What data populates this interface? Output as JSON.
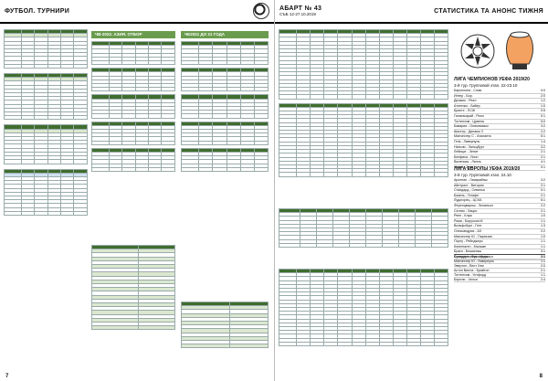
{
  "left": {
    "section": "ФУТБОЛ. ТУРНИРИ",
    "page_number": "7",
    "col2_title": "ЧВ-2022. АЗИЯ. ОТБОР",
    "col3_title": "ЧЕ2021 ДО 21 ГОДА"
  },
  "right": {
    "masthead": "АБАРТ № 43",
    "masthead_sub": "СЪБ 12-27.10.2019",
    "section": "СТАТИСТИКА ТА АНОНС ТИЖНЯ",
    "page_number": "8",
    "cl_title": "ЛИГА ЧЕМПИОНОВ УЕФА 2019/20",
    "cl_sub": "3-й тур. Групповой этап. 22-23.10",
    "cl_matches": [
      [
        "Барселона - Слав.",
        "0:0"
      ],
      [
        "Интер - Бор.",
        "2:0"
      ],
      [
        "Динамо - Реал",
        "1:2"
      ],
      [
        "Атлетико - Байер",
        "1:0"
      ],
      [
        "Брюгге - ПСЖ",
        "0:5"
      ],
      [
        "Галатасарай - Реал",
        "0:1"
      ],
      [
        "Тоттенхэм - Црвена",
        "5:0"
      ],
      [
        "Бавария - Олимпиакос",
        "3:2"
      ],
      [
        "Шахтер - Динамо З",
        "2:2"
      ],
      [
        "Манчестер С - Аталанта",
        "5:1"
      ],
      [
        "Генк - Ливерпуль",
        "1:4"
      ],
      [
        "Наполи - Зальцбург",
        "3:2"
      ],
      [
        "Лейпциг - Зенит",
        "2:1"
      ],
      [
        "Бенфика - Лион",
        "2:1"
      ],
      [
        "Валенсия - Лилль",
        "4:1"
      ],
      [
        "Челси - Аякс",
        "0:1"
      ]
    ],
    "el_title": "ЛИГА ЕВРОПЫ УЕФА 2019/20",
    "el_sub": "3-й тур. Групповой этап. 24.10",
    "el_matches": [
      [
        "Арсенал - Гимарайнш",
        "3:2"
      ],
      [
        "Айнтрахт - Витория",
        "2:1"
      ],
      [
        "Стандард - Севилья",
        "0:1"
      ],
      [
        "Базель - Гетафе",
        "2:1"
      ],
      [
        "Лудогорец - ЦСКА",
        "5:1"
      ],
      [
        "Ференцварош - Эспаньол",
        "2:2"
      ],
      [
        "Селтик - Лацио",
        "2:1"
      ],
      [
        "Ренн - Клуж",
        "1:0"
      ],
      [
        "Рома - Боруссия М",
        "1:1"
      ],
      [
        "Вольфсбург - Гент",
        "1:3"
      ],
      [
        "Олександрия - АЗ",
        "2:2"
      ],
      [
        "Манчестер Ю - Партизан",
        "1:0"
      ],
      [
        "Порту - Рейнджерс",
        "1:1"
      ],
      [
        "Копенгаген - Мальме",
        "1:1"
      ],
      [
        "Брага - Бешикташ",
        "3:1"
      ],
      [
        "Стандарт - Франкфурт",
        "2:1"
      ]
    ],
    "schedule": [
      [
        "Вулвергемптон - Ньюкасл",
        "1:1"
      ],
      [
        "Манчестер Ю - Ливерпуль",
        "1:1"
      ],
      [
        "Эвертон - Вест Хэм",
        "2:0"
      ],
      [
        "Астон Вилла - Брайтон",
        "2:1"
      ],
      [
        "Тоттенхэм - Уотфорд",
        "1:1"
      ],
      [
        "Бернли - Челси",
        "2:4"
      ]
    ]
  }
}
